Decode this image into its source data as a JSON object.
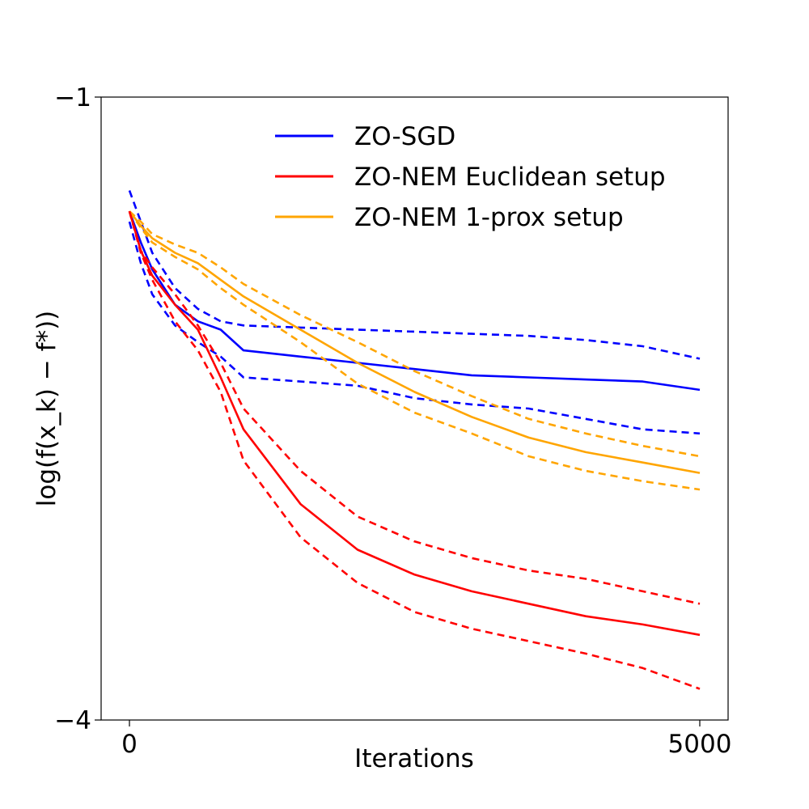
{
  "chart_data": {
    "type": "line",
    "title": "",
    "xlabel": "Iterations",
    "ylabel": "log(f(x_k) − f*))",
    "xlim": [
      0,
      5000
    ],
    "ylim": [
      -4,
      -1
    ],
    "xticks": [
      0,
      5000
    ],
    "xtick_labels": [
      "0",
      "5000"
    ],
    "yticks": [
      -1,
      -4
    ],
    "ytick_labels": [
      "−1",
      "−4"
    ],
    "grid": false,
    "legend_position": "top-center",
    "series": [
      {
        "name": "ZO-SGD",
        "color": "#0000ff",
        "legend": true,
        "x": [
          0,
          100,
          200,
          400,
          600,
          800,
          1000,
          1500,
          2000,
          2500,
          3000,
          3500,
          4000,
          4500,
          5000
        ],
        "values": [
          -1.55,
          -1.7,
          -1.83,
          -2.0,
          -2.08,
          -2.12,
          -2.22,
          -2.25,
          -2.28,
          -2.31,
          -2.34,
          -2.35,
          -2.36,
          -2.37,
          -2.41
        ],
        "std_upper": [
          -1.45,
          -1.6,
          -1.75,
          -1.92,
          -2.02,
          -2.08,
          -2.1,
          -2.11,
          -2.12,
          -2.13,
          -2.14,
          -2.15,
          -2.17,
          -2.2,
          -2.26
        ],
        "std_lower": [
          -1.6,
          -1.8,
          -1.95,
          -2.1,
          -2.18,
          -2.25,
          -2.35,
          -2.37,
          -2.39,
          -2.45,
          -2.48,
          -2.5,
          -2.55,
          -2.6,
          -2.62
        ]
      },
      {
        "name": "ZO-NEM Euclidean setup",
        "color": "#ff0000",
        "legend": true,
        "x": [
          0,
          100,
          200,
          400,
          600,
          800,
          1000,
          1500,
          2000,
          2500,
          3000,
          3500,
          4000,
          4500,
          5000
        ],
        "values": [
          -1.55,
          -1.74,
          -1.86,
          -2.0,
          -2.12,
          -2.35,
          -2.6,
          -2.96,
          -3.18,
          -3.3,
          -3.38,
          -3.44,
          -3.5,
          -3.54,
          -3.59
        ],
        "std_upper": [
          -1.55,
          -1.74,
          -1.82,
          -1.95,
          -2.1,
          -2.28,
          -2.5,
          -2.8,
          -3.02,
          -3.14,
          -3.22,
          -3.28,
          -3.32,
          -3.38,
          -3.44
        ],
        "std_lower": [
          -1.55,
          -1.75,
          -1.88,
          -2.08,
          -2.22,
          -2.42,
          -2.75,
          -3.12,
          -3.34,
          -3.48,
          -3.56,
          -3.62,
          -3.68,
          -3.75,
          -3.85
        ]
      },
      {
        "name": "ZO-NEM 1-prox setup",
        "color": "#ffa500",
        "legend": true,
        "x": [
          0,
          100,
          200,
          400,
          600,
          800,
          1000,
          1500,
          2000,
          2500,
          3000,
          3500,
          4000,
          4500,
          5000
        ],
        "values": [
          -1.55,
          -1.62,
          -1.68,
          -1.75,
          -1.8,
          -1.88,
          -1.96,
          -2.12,
          -2.28,
          -2.42,
          -2.54,
          -2.64,
          -2.71,
          -2.76,
          -2.81
        ],
        "std_upper": [
          -1.55,
          -1.6,
          -1.66,
          -1.71,
          -1.75,
          -1.82,
          -1.9,
          -2.05,
          -2.18,
          -2.32,
          -2.44,
          -2.55,
          -2.62,
          -2.68,
          -2.73
        ],
        "std_lower": [
          -1.55,
          -1.63,
          -1.7,
          -1.77,
          -1.83,
          -1.92,
          -2.0,
          -2.18,
          -2.38,
          -2.52,
          -2.62,
          -2.73,
          -2.8,
          -2.85,
          -2.89
        ]
      }
    ]
  }
}
